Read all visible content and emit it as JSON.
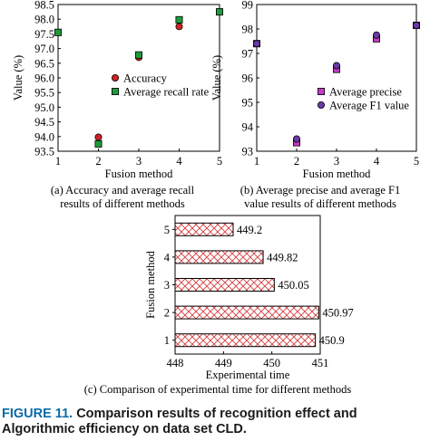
{
  "chart_data": [
    {
      "type": "scatter",
      "caption_lines": [
        "(a) Accuracy and average recall",
        "results of different methods"
      ],
      "xlabel": "Fusion method",
      "ylabel": "Value (%)",
      "xlim": [
        1,
        5
      ],
      "ylim": [
        93.5,
        98.5
      ],
      "xticks": [
        "1",
        "2",
        "3",
        "4",
        "5"
      ],
      "yticks": [
        "93.5",
        "94.0",
        "94.5",
        "95.0",
        "95.5",
        "96.0",
        "96.5",
        "97.0",
        "97.5",
        "98.0",
        "98.5"
      ],
      "legend_position": "right-center",
      "series": [
        {
          "name": "Accuracy",
          "marker": "circle",
          "color": "#d42020",
          "x": [
            1,
            2,
            3,
            4,
            5
          ],
          "y": [
            97.55,
            93.98,
            96.7,
            97.75,
            98.25
          ]
        },
        {
          "name": "Average recall rate",
          "marker": "square",
          "color": "#1f9a3c",
          "x": [
            1,
            2,
            3,
            4,
            5
          ],
          "y": [
            97.55,
            93.75,
            96.78,
            97.98,
            98.25
          ]
        }
      ]
    },
    {
      "type": "scatter",
      "caption_lines": [
        "(b) Average precise and average F1",
        "value results of different methods"
      ],
      "xlabel": "Fusion method",
      "ylabel": "Value (%)",
      "xlim": [
        1,
        5
      ],
      "ylim": [
        93,
        99
      ],
      "xticks": [
        "1",
        "2",
        "3",
        "4",
        "5"
      ],
      "yticks": [
        "93",
        "94",
        "95",
        "96",
        "97",
        "98",
        "99"
      ],
      "legend_position": "bottom-right",
      "series": [
        {
          "name": "Average precise",
          "marker": "square",
          "color": "#c43bc4",
          "x": [
            1,
            2,
            3,
            4,
            5
          ],
          "y": [
            97.4,
            93.35,
            96.35,
            97.6,
            98.15
          ]
        },
        {
          "name": "Average F1 value",
          "marker": "circle",
          "color": "#6a3aa8",
          "x": [
            1,
            2,
            3,
            4,
            5
          ],
          "y": [
            97.4,
            93.5,
            96.5,
            97.75,
            98.15
          ]
        }
      ]
    },
    {
      "type": "bar",
      "orientation": "horizontal",
      "caption": "(c) Comparison of experimental time for different methods",
      "xlabel": "Experimental time",
      "ylabel": "Fusion method",
      "xlim": [
        448,
        451
      ],
      "xticks": [
        "448",
        "449",
        "450",
        "451"
      ],
      "categories": [
        "1",
        "2",
        "3",
        "4",
        "5"
      ],
      "values": [
        450.9,
        450.97,
        450.05,
        449.82,
        449.2
      ],
      "value_labels": [
        "450.9",
        "450.97",
        "450.05",
        "449.82",
        "449.2"
      ],
      "bar_fill": "crosshatch",
      "hatch_color": "#d63b3b"
    }
  ],
  "figure_caption": {
    "label": "FIGURE 11.",
    "text": "Comparison results of recognition effect and Algorithmic efficiency on data set CLD."
  }
}
